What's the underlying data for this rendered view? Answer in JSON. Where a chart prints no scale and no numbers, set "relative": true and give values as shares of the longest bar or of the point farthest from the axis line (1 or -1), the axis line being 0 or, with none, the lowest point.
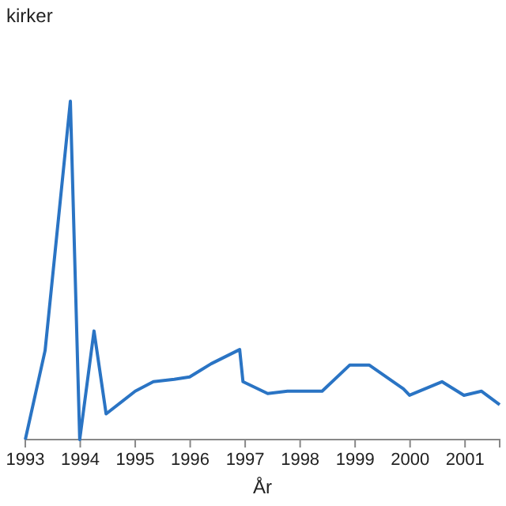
{
  "chart_data": {
    "type": "line",
    "ylabel": "kirker",
    "xlabel": "År",
    "relative": true,
    "x": [
      1993.0,
      1993.36,
      1993.82,
      1993.99,
      1994.25,
      1994.47,
      1995.0,
      1995.33,
      1995.71,
      1995.99,
      1996.38,
      1996.9,
      1996.96,
      1997.41,
      1997.77,
      1998.4,
      1998.9,
      1999.26,
      1999.88,
      1999.99,
      2000.58,
      2000.98,
      2001.3,
      2001.63
    ],
    "series": [
      {
        "color": "#2a74c4",
        "values": [
          0,
          0.263,
          1,
          0,
          0.321,
          0.076,
          0.143,
          0.171,
          0.178,
          0.185,
          0.224,
          0.266,
          0.171,
          0.136,
          0.143,
          0.143,
          0.22,
          0.22,
          0.15,
          0.131,
          0.171,
          0.131,
          0.143,
          0.103
        ]
      }
    ],
    "xlim": [
      1993,
      2001.63
    ],
    "xticks": [
      1993,
      1994,
      1995,
      1996,
      1997,
      1998,
      1999,
      2000,
      2001
    ],
    "grid": false
  }
}
